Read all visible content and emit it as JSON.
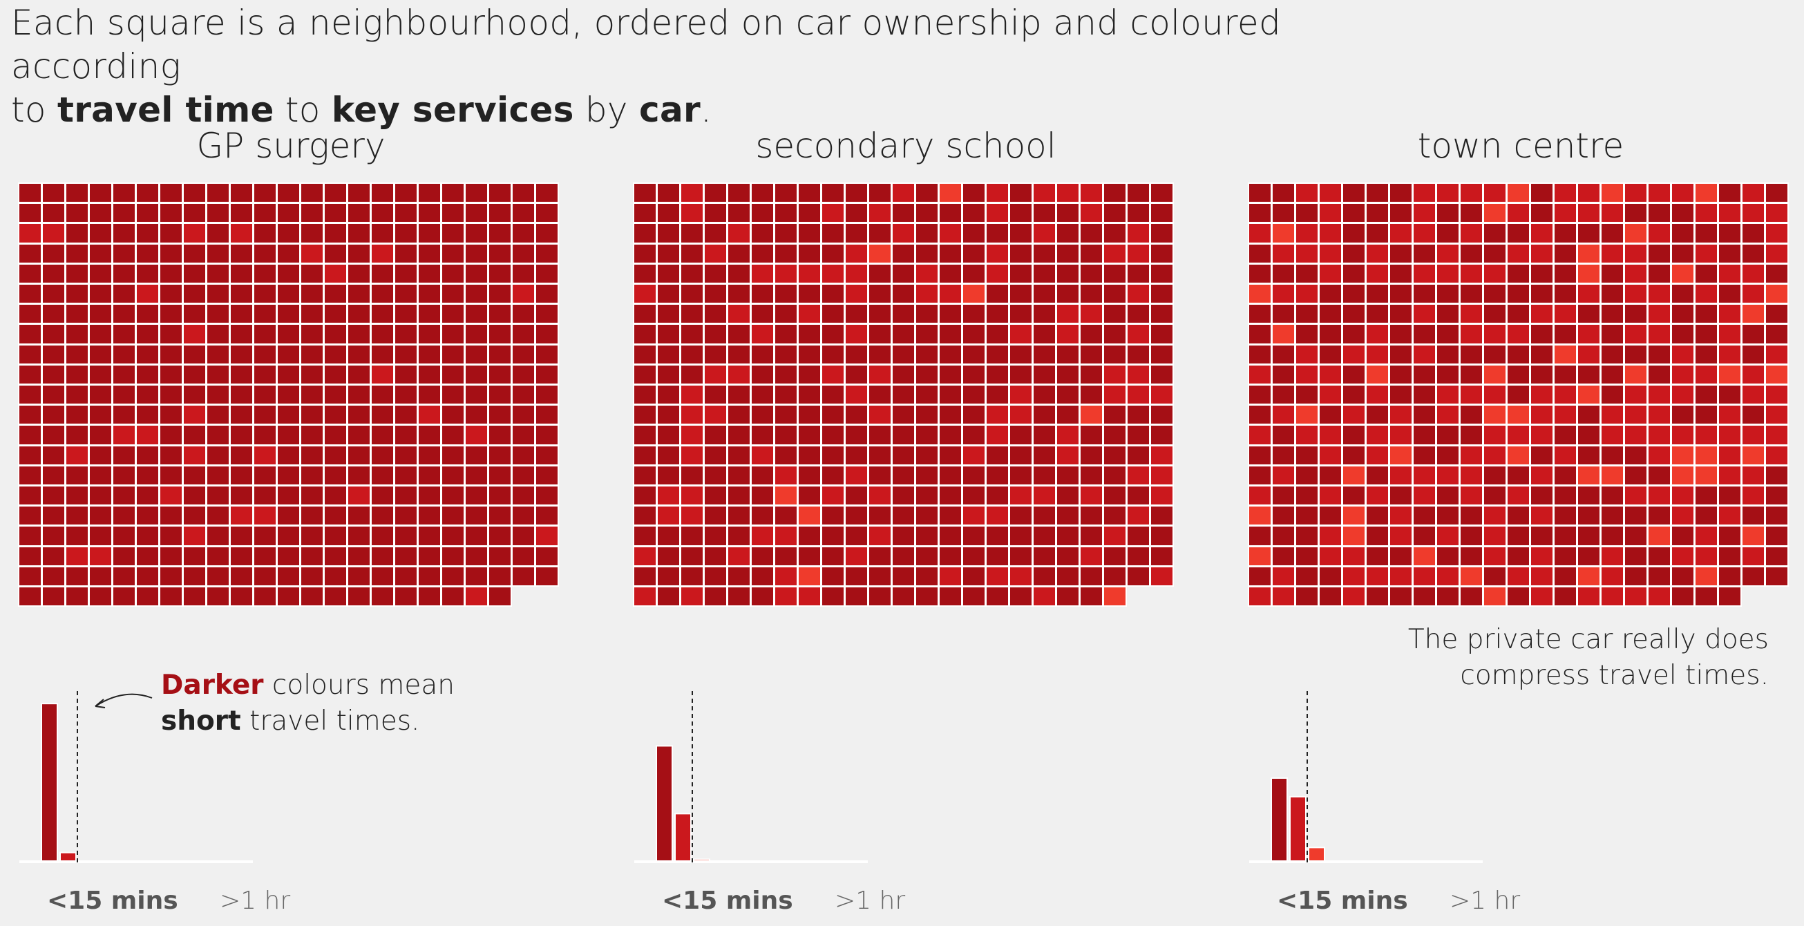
{
  "title": {
    "line1": "Each square is a neighbourhood, ordered on car ownership and coloured according",
    "line2_a": "to ",
    "line2_b": "travel time",
    "line2_c": " to ",
    "line2_d": "key services",
    "line2_e": " by ",
    "line2_f": "car",
    "line2_g": "."
  },
  "colors": {
    "background": "#f0f0f0",
    "bin0": "#a50f15",
    "bin1": "#cb181d",
    "bin2": "#ef3b2c",
    "bin3": "#fb6a4a",
    "cell_border": "#ffffff",
    "threshold_line": "#222222",
    "axis_line": "#ffffff"
  },
  "annotations": {
    "darker": {
      "word1": "Darker",
      "rest1": " colours mean",
      "word2": "short",
      "rest2": " travel times."
    },
    "car": {
      "line1": "The private car really does",
      "line2": "compress travel times."
    }
  },
  "chart_data": [
    {
      "type": "waffle",
      "title": "GP surgery",
      "xtick_low": "<15 mins",
      "xtick_high": ">1 hr",
      "grid_columns": 23,
      "grid_rows": 21,
      "cell_count": 481,
      "histogram": {
        "type": "bar",
        "bins": [
          "0-7.5 mins",
          "7.5-15 mins",
          "15-22.5 mins",
          "22.5-30 mins"
        ],
        "values": [
          93,
          5,
          0,
          0
        ],
        "threshold": "15 mins"
      }
    },
    {
      "type": "waffle",
      "title": "secondary school",
      "xtick_low": "<15 mins",
      "xtick_high": ">1 hr",
      "grid_columns": 23,
      "grid_rows": 21,
      "cell_count": 481,
      "histogram": {
        "type": "bar",
        "bins": [
          "0-7.5 mins",
          "7.5-15 mins",
          "15-22.5 mins",
          "22.5-30 mins"
        ],
        "values": [
          68,
          28,
          1,
          0
        ],
        "threshold": "15 mins"
      }
    },
    {
      "type": "waffle",
      "title": "town centre",
      "xtick_low": "<15 mins",
      "xtick_high": ">1 hr",
      "grid_columns": 23,
      "grid_rows": 21,
      "cell_count": 481,
      "histogram": {
        "type": "bar",
        "bins": [
          "0-7.5 mins",
          "7.5-15 mins",
          "15-22.5 mins",
          "22.5-30 mins"
        ],
        "values": [
          49,
          38,
          8,
          0
        ],
        "threshold": "15 mins"
      }
    }
  ]
}
